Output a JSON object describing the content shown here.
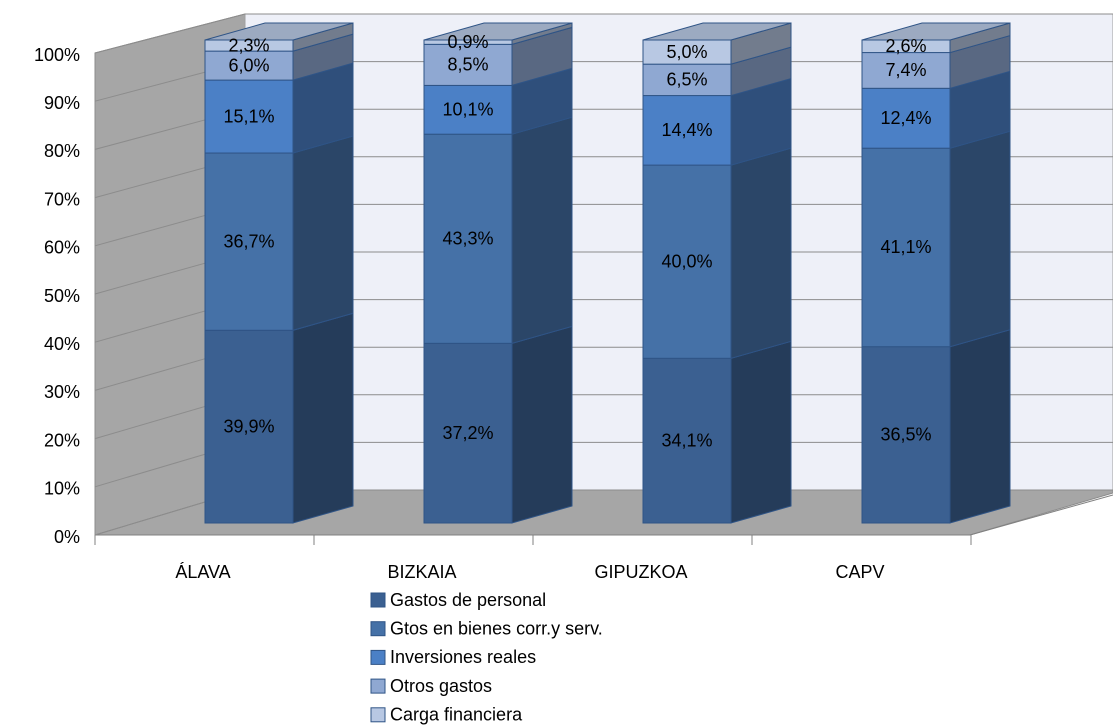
{
  "chart_data": {
    "type": "bar3d_stacked_percent",
    "categories": [
      "ÁLAVA",
      "BIZKAIA",
      "GIPUZKOA",
      "CAPV"
    ],
    "series": [
      {
        "name": "Gastos de personal",
        "color": "#3b6091",
        "values": [
          39.9,
          37.2,
          34.1,
          36.5
        ],
        "value_labels": [
          "39,9%",
          "37,2%",
          "34,1%",
          "36,5%"
        ]
      },
      {
        "name": "Gtos en bienes corr.y serv.",
        "color": "#4571a7",
        "values": [
          36.7,
          43.3,
          40.0,
          41.1
        ],
        "value_labels": [
          "36,7%",
          "43,3%",
          "40,0%",
          "41,1%"
        ]
      },
      {
        "name": "Inversiones reales",
        "color": "#4b80c6",
        "values": [
          15.1,
          10.1,
          14.4,
          12.4
        ],
        "value_labels": [
          "15,1%",
          "10,1%",
          "14,4%",
          "12,4%"
        ]
      },
      {
        "name": "Otros gastos",
        "color": "#8fa8d2",
        "values": [
          6.0,
          8.5,
          6.5,
          7.4
        ],
        "value_labels": [
          "6,0%",
          "8,5%",
          "6,5%",
          "7,4%"
        ]
      },
      {
        "name": "Carga financiera",
        "color": "#b8c8e3",
        "values": [
          2.3,
          0.9,
          5.0,
          2.6
        ],
        "value_labels": [
          "2,3%",
          "0,9%",
          "5,0%",
          "2,6%"
        ]
      }
    ],
    "ylim": [
      0,
      100
    ],
    "yticks": [
      {
        "value": 0,
        "label": "0%"
      },
      {
        "value": 10,
        "label": "10%"
      },
      {
        "value": 20,
        "label": "20%"
      },
      {
        "value": 30,
        "label": "30%"
      },
      {
        "value": 40,
        "label": "40%"
      },
      {
        "value": 50,
        "label": "50%"
      },
      {
        "value": 60,
        "label": "60%"
      },
      {
        "value": 70,
        "label": "70%"
      },
      {
        "value": 80,
        "label": "80%"
      },
      {
        "value": 90,
        "label": "90%"
      },
      {
        "value": 100,
        "label": "100%"
      }
    ],
    "grid": true,
    "legend": "bottom"
  }
}
